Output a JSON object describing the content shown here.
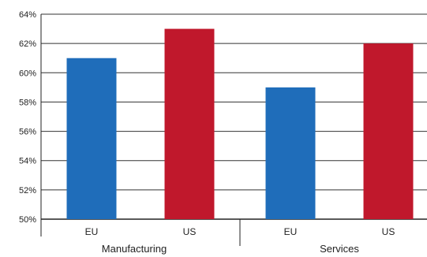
{
  "chart_data": {
    "type": "bar",
    "title": "",
    "xlabel": "",
    "ylabel": "",
    "ylim": [
      50,
      64
    ],
    "yticks": [
      "50%",
      "52%",
      "54%",
      "56%",
      "58%",
      "60%",
      "62%",
      "64%"
    ],
    "ytick_values": [
      50,
      52,
      54,
      56,
      58,
      60,
      62,
      64
    ],
    "grid": true,
    "groups": [
      {
        "label": "Manufacturing",
        "bars": [
          {
            "category": "EU",
            "value": 61,
            "color": "#1f6dba"
          },
          {
            "category": "US",
            "value": 63,
            "color": "#c0182c"
          }
        ]
      },
      {
        "label": "Services",
        "bars": [
          {
            "category": "EU",
            "value": 59,
            "color": "#1f6dba"
          },
          {
            "category": "US",
            "value": 62,
            "color": "#c0182c"
          }
        ]
      }
    ]
  }
}
